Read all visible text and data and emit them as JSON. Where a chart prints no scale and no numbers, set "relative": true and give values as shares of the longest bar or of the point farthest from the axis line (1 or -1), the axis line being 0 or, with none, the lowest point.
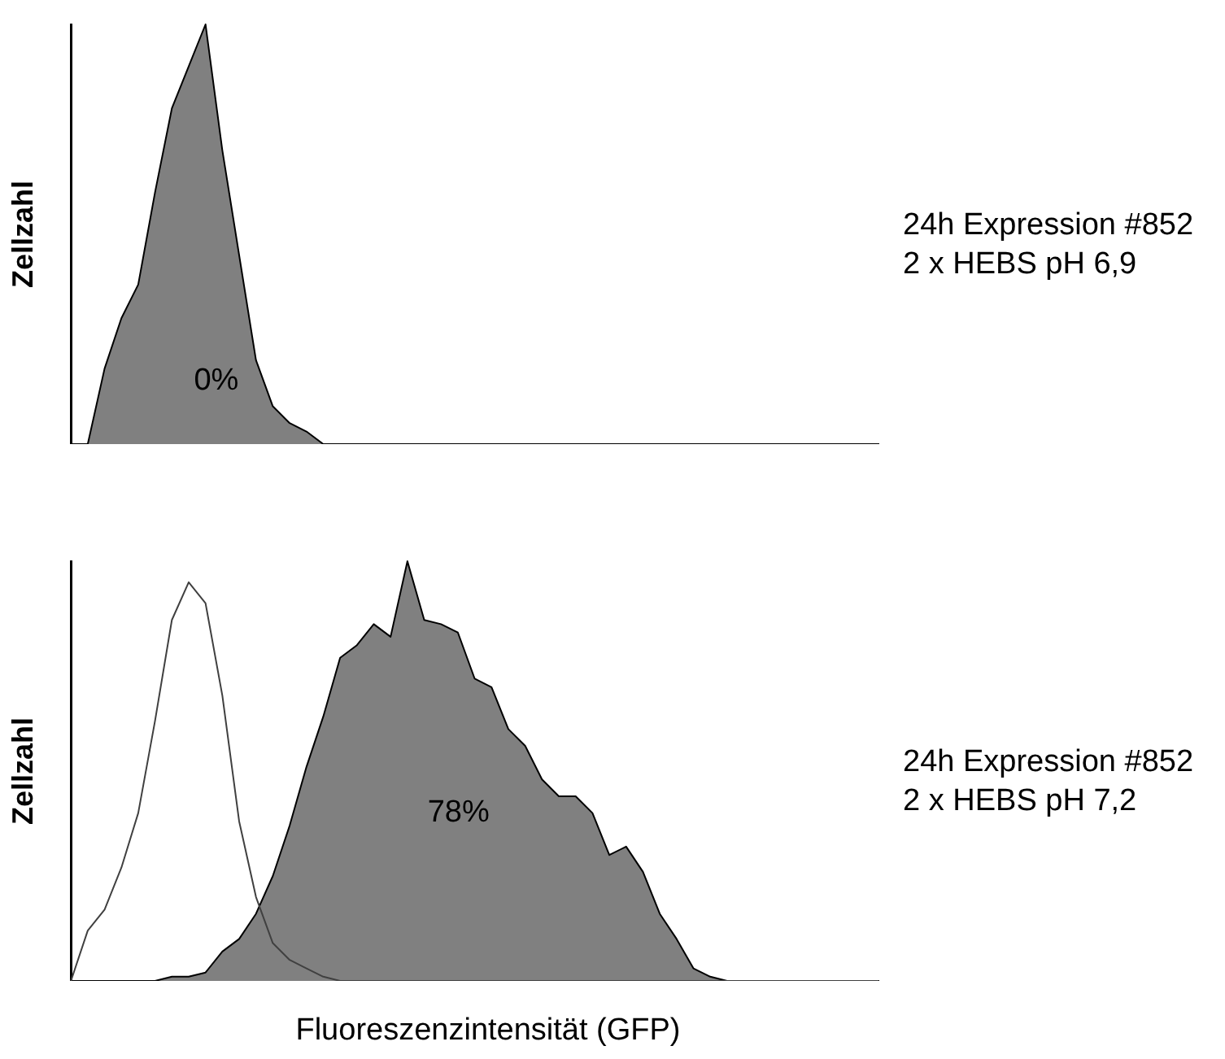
{
  "chart_data": [
    {
      "type": "area",
      "ylabel": "Zellzahl",
      "relative": true,
      "legend": false,
      "grid": false,
      "tick_labels": false,
      "marker": "none",
      "annotations": [
        "24h Expression #852",
        "2 x HEBS pH 6,9",
        "0%"
      ],
      "categories": [
        null,
        null,
        null,
        null,
        null,
        null,
        null,
        null,
        null,
        null,
        null,
        null,
        null,
        null,
        null,
        null,
        null,
        null,
        null,
        null,
        null,
        null,
        null,
        null,
        null,
        null,
        null,
        null,
        null,
        null,
        null,
        null,
        null,
        null,
        null,
        null,
        null,
        null,
        null,
        null,
        null,
        null,
        null,
        null,
        null,
        null,
        null,
        null,
        null
      ],
      "series": [
        {
          "color": "#808080",
          "values": [
            0,
            0,
            0.18,
            0.3,
            0.38,
            0.6,
            0.8,
            0.9,
            1.0,
            0.7,
            0.45,
            0.2,
            0.09,
            0.05,
            0.03,
            0,
            0,
            0,
            0,
            0,
            0,
            0,
            0,
            0,
            0,
            0,
            0,
            0,
            0,
            0,
            0,
            0,
            0,
            0,
            0,
            0,
            0,
            0,
            0,
            0,
            0,
            0,
            0,
            0,
            0,
            0,
            0,
            0,
            0
          ]
        }
      ]
    },
    {
      "type": "area",
      "xlabel": "Fluoreszenzintensität (GFP)",
      "ylabel": "Zellzahl",
      "relative": true,
      "legend": false,
      "grid": false,
      "tick_labels": false,
      "marker": "none",
      "annotations": [
        "24h Expression #852",
        "2 x HEBS pH 7,2",
        "78%"
      ],
      "categories": [
        null,
        null,
        null,
        null,
        null,
        null,
        null,
        null,
        null,
        null,
        null,
        null,
        null,
        null,
        null,
        null,
        null,
        null,
        null,
        null,
        null,
        null,
        null,
        null,
        null,
        null,
        null,
        null,
        null,
        null,
        null,
        null,
        null,
        null,
        null,
        null,
        null,
        null,
        null,
        null,
        null,
        null,
        null,
        null,
        null,
        null,
        null,
        null,
        null
      ],
      "series": [
        {
          "type": "line",
          "color": "#404040",
          "values": [
            0,
            0.12,
            0.17,
            0.27,
            0.4,
            0.62,
            0.86,
            0.95,
            0.9,
            0.68,
            0.38,
            0.2,
            0.09,
            0.05,
            0.03,
            0.01,
            0,
            0,
            0,
            0,
            0,
            0,
            0,
            0,
            0,
            0,
            0,
            0,
            0,
            0,
            0,
            0,
            0,
            0,
            0,
            0,
            0,
            0,
            0,
            0,
            0,
            0,
            0,
            0,
            0,
            0,
            0,
            0,
            0
          ]
        },
        {
          "color": "#808080",
          "values": [
            0,
            0,
            0,
            0,
            0,
            0,
            0.01,
            0.01,
            0.02,
            0.07,
            0.1,
            0.16,
            0.25,
            0.37,
            0.51,
            0.63,
            0.77,
            0.8,
            0.85,
            0.82,
            1.0,
            0.86,
            0.85,
            0.83,
            0.72,
            0.7,
            0.6,
            0.56,
            0.48,
            0.44,
            0.44,
            0.4,
            0.3,
            0.32,
            0.26,
            0.16,
            0.1,
            0.03,
            0.01,
            0,
            0,
            0,
            0,
            0,
            0,
            0,
            0,
            0,
            0
          ]
        }
      ]
    }
  ]
}
